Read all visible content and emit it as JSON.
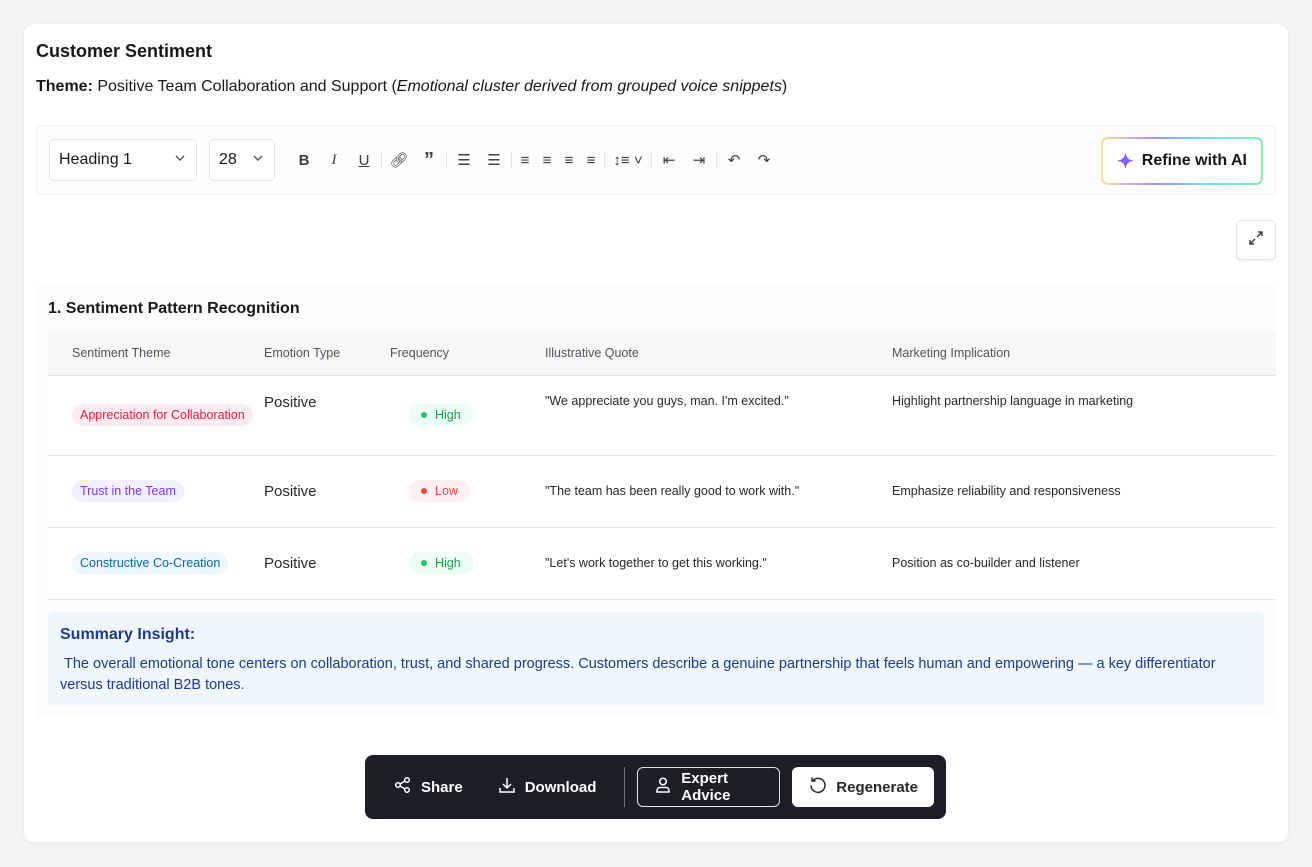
{
  "title": "Customer Sentiment",
  "theme": {
    "label": "Theme:",
    "value": "Positive Team Collaboration and Support (",
    "note": "Emotional cluster derived from grouped voice snippets",
    "close": ")"
  },
  "toolbar": {
    "block_type": "Heading 1",
    "font_size": "28",
    "refine_label": "Refine with AI"
  },
  "section": {
    "title": "1. Sentiment Pattern Recognition",
    "headers": [
      "Sentiment Theme",
      "Emotion Type",
      "Frequency",
      "Illustrative Quote",
      "Marketing Implication"
    ],
    "rows": [
      {
        "theme": "Appreciation for Collaboration",
        "emotion": "Positive",
        "frequency": "High",
        "quote": "\"We appreciate you guys, man. I'm excited.\"",
        "implication": "Highlight partnership language in marketing"
      },
      {
        "theme": "Trust in the Team",
        "emotion": "Positive",
        "frequency": "Low",
        "quote": "\"The team has been really good to work with.\"",
        "implication": "Emphasize reliability and responsiveness"
      },
      {
        "theme": "Constructive Co-Creation",
        "emotion": "Positive",
        "frequency": "High",
        "quote": "\"Let's work together to get this working.\"",
        "implication": "Position as co-builder and listener"
      }
    ]
  },
  "summary": {
    "title": "Summary Insight:",
    "text": "The overall emotional tone centers on collaboration, trust, and shared progress. Customers describe a genuine partnership that feels human and empowering — a key differentiator versus traditional B2B tones."
  },
  "actions": {
    "share": "Share",
    "download": "Download",
    "expert": "Expert Advice",
    "regenerate": "Regenerate"
  },
  "colors": {
    "high": "#16a34a",
    "low": "#ef4444",
    "theme1": "#e11d48",
    "theme2": "#7c3aed",
    "theme3": "#0369a1",
    "actionbar": "#1c1f2a"
  }
}
